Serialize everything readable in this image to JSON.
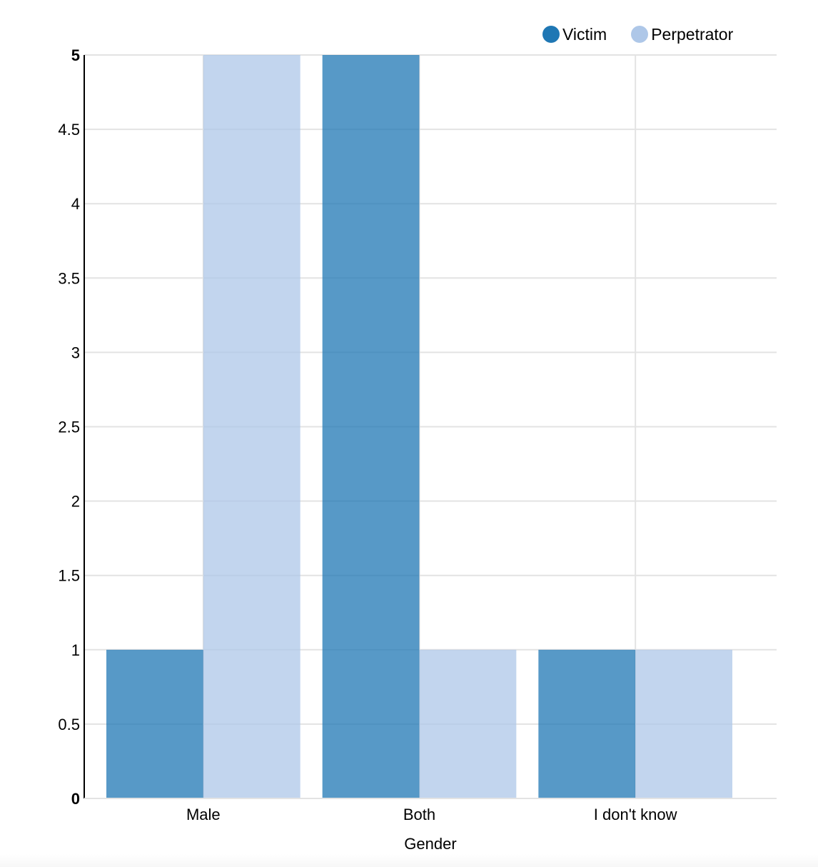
{
  "chart_data": {
    "type": "bar",
    "categories": [
      "Male",
      "Both",
      "I don't know"
    ],
    "series": [
      {
        "name": "Victim",
        "color": "#1f77b4",
        "values": [
          1,
          5,
          1
        ]
      },
      {
        "name": "Perpetrator",
        "color": "#aec7e8",
        "values": [
          5,
          1,
          1
        ]
      }
    ],
    "xlabel": "Gender",
    "ylabel": "",
    "ylim": [
      0,
      5
    ],
    "yticks": [
      "0",
      "0.5",
      "1",
      "1.5",
      "2",
      "2.5",
      "3",
      "3.5",
      "4",
      "4.5",
      "5"
    ],
    "grid": true,
    "legend_position": "top-right"
  }
}
